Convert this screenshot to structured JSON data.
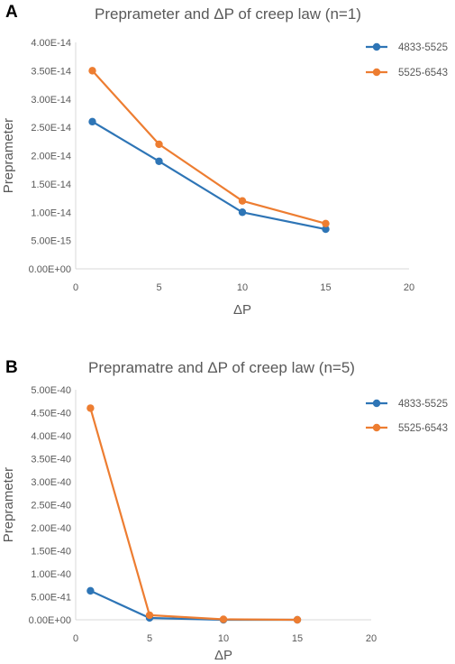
{
  "panels": [
    {
      "letter": "A"
    },
    {
      "letter": "B"
    }
  ],
  "chart_data": [
    {
      "type": "line",
      "title": "Preprameter and ΔP of creep law (n=1)",
      "xlabel": "ΔP",
      "ylabel": "Preprameter",
      "xlim": [
        0,
        20
      ],
      "ylim": [
        0,
        4e-14
      ],
      "x_ticks": [
        0,
        5,
        10,
        15,
        20
      ],
      "x_tick_labels": [
        "0",
        "5",
        "10",
        "15",
        "20"
      ],
      "y_ticks": [
        0,
        5e-15,
        1e-14,
        1.5e-14,
        2e-14,
        2.5e-14,
        3e-14,
        3.5e-14,
        4e-14
      ],
      "y_tick_labels": [
        "0.00E+00",
        "5.00E-15",
        "1.00E-14",
        "1.50E-14",
        "2.00E-14",
        "2.50E-14",
        "3.00E-14",
        "3.50E-14",
        "4.00E-14"
      ],
      "grid": false,
      "legend_position": "top-right",
      "series": [
        {
          "name": "4833-5525",
          "color": "#2e75b6",
          "x": [
            1,
            5,
            10,
            15
          ],
          "y": [
            2.6e-14,
            1.9e-14,
            1e-14,
            7e-15
          ]
        },
        {
          "name": "5525-6543",
          "color": "#ed7d31",
          "x": [
            1,
            5,
            10,
            15
          ],
          "y": [
            3.5e-14,
            2.2e-14,
            1.2e-14,
            8e-15
          ]
        }
      ]
    },
    {
      "type": "line",
      "title": "Prepramatre and ΔP of creep law (n=5)",
      "xlabel": "ΔP",
      "ylabel": "Preprameter",
      "xlim": [
        0,
        20
      ],
      "ylim": [
        0,
        5e-40
      ],
      "x_ticks": [
        0,
        5,
        10,
        15,
        20
      ],
      "x_tick_labels": [
        "0",
        "5",
        "10",
        "15",
        "20"
      ],
      "y_ticks": [
        0,
        5e-41,
        1e-40,
        1.5e-40,
        2e-40,
        2.5e-40,
        3e-40,
        3.5e-40,
        4e-40,
        4.5e-40,
        5e-40
      ],
      "y_tick_labels": [
        "0.00E+00",
        "5.00E-41",
        "1.00E-40",
        "1.50E-40",
        "2.00E-40",
        "2.50E-40",
        "3.00E-40",
        "3.50E-40",
        "4.00E-40",
        "4.50E-40",
        "5.00E-40"
      ],
      "grid": false,
      "legend_position": "top-right",
      "series": [
        {
          "name": "4833-5525",
          "color": "#2e75b6",
          "x": [
            1,
            5,
            10,
            15
          ],
          "y": [
            6.3e-41,
            4e-42,
            0,
            0
          ]
        },
        {
          "name": "5525-6543",
          "color": "#ed7d31",
          "x": [
            1,
            5,
            10,
            15
          ],
          "y": [
            4.6e-40,
            1e-41,
            1e-42,
            0
          ]
        }
      ]
    }
  ]
}
